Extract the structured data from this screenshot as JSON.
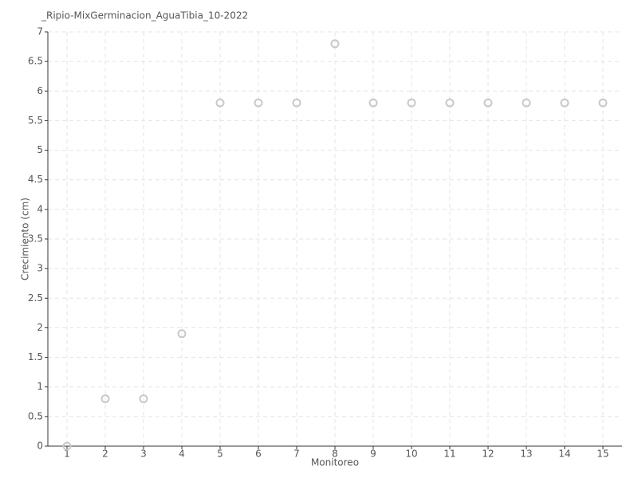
{
  "chart_data": {
    "type": "scatter",
    "title": "_Ripio-MixGerminacion_AguaTibia_10-2022",
    "x_label": "Monitoreo",
    "y_label": "Crecimiento (cm)",
    "x": [
      1,
      2,
      3,
      4,
      5,
      6,
      7,
      8,
      9,
      10,
      11,
      12,
      13,
      14,
      15
    ],
    "values": [
      0,
      0.8,
      0.8,
      1.9,
      5.8,
      5.8,
      5.8,
      6.8,
      5.8,
      5.8,
      5.8,
      5.8,
      5.8,
      5.8,
      5.8
    ],
    "color": "#c8c8c8",
    "xlim": [
      0.5,
      15.5
    ],
    "xticks": [
      1,
      2,
      3,
      4,
      5,
      6,
      7,
      8,
      9,
      10,
      11,
      12,
      13,
      14,
      15
    ],
    "ylim": [
      0,
      7
    ],
    "yticks": [
      0,
      0.5,
      1,
      1.5,
      2,
      2.5,
      3,
      3.5,
      4,
      4.5,
      5,
      5.5,
      6,
      6.5,
      7
    ],
    "grid": true
  }
}
